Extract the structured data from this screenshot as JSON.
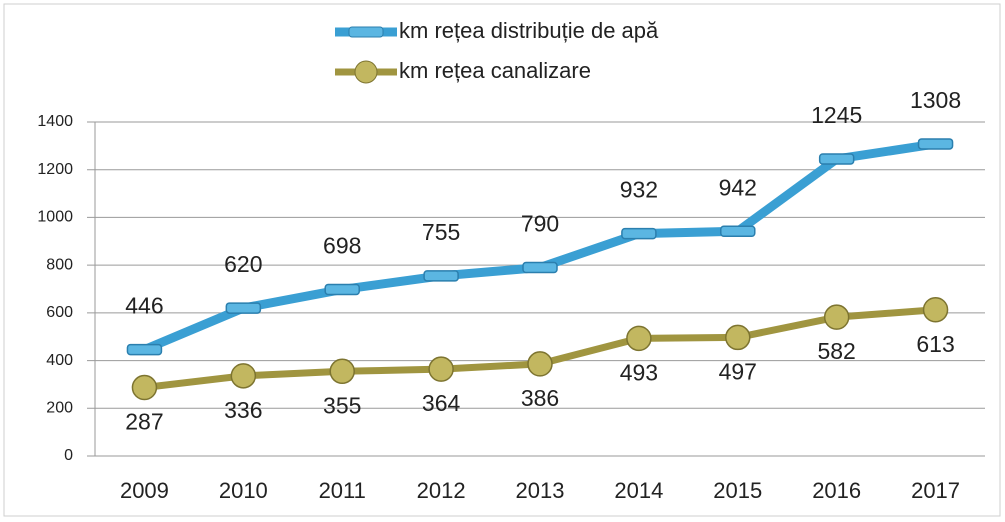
{
  "chart_data": {
    "type": "line",
    "categories": [
      "2009",
      "2010",
      "2011",
      "2012",
      "2013",
      "2014",
      "2015",
      "2016",
      "2017"
    ],
    "series": [
      {
        "name": "km rețea distribuție de apă",
        "color": "#3a9fd3",
        "values": [
          446,
          620,
          698,
          755,
          790,
          932,
          942,
          1245,
          1308
        ]
      },
      {
        "name": "km rețea canalizare",
        "color": "#a09540",
        "values": [
          287,
          336,
          355,
          364,
          386,
          493,
          497,
          582,
          613
        ]
      }
    ],
    "ylim": [
      0,
      1400
    ],
    "yticks": [
      0,
      200,
      400,
      600,
      800,
      1000,
      1200,
      1400
    ],
    "grid": true,
    "legend": "top"
  }
}
